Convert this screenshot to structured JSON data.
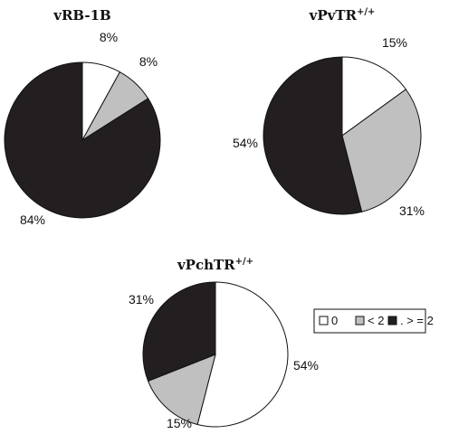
{
  "legend": {
    "items": [
      {
        "label": "0",
        "color": "#ffffff"
      },
      {
        "label": "< 2",
        "color": "#c0c0c0"
      },
      {
        "label": ". > = 2",
        "color": "#231f20"
      }
    ]
  },
  "chart_data": [
    {
      "type": "pie",
      "title": "vRB-1B",
      "title_sup": "",
      "labels": [
        "0",
        "< 2",
        ". > = 2"
      ],
      "values": [
        8,
        8,
        84
      ],
      "value_labels": [
        "8%",
        "8%",
        "84%"
      ],
      "colors": [
        "#ffffff",
        "#c0c0c0",
        "#231f20"
      ]
    },
    {
      "type": "pie",
      "title": "vPvTR",
      "title_sup": "+/+",
      "labels": [
        "0",
        "< 2",
        ". > = 2"
      ],
      "values": [
        15,
        31,
        54
      ],
      "value_labels": [
        "15%",
        "31%",
        "54%"
      ],
      "colors": [
        "#ffffff",
        "#c0c0c0",
        "#231f20"
      ]
    },
    {
      "type": "pie",
      "title": "vPchTR",
      "title_sup": "+/+",
      "labels": [
        "0",
        "< 2",
        ". > = 2"
      ],
      "values": [
        54,
        15,
        31
      ],
      "value_labels": [
        "54%",
        "15%",
        "31%"
      ],
      "colors": [
        "#ffffff",
        "#c0c0c0",
        "#231f20"
      ]
    }
  ]
}
